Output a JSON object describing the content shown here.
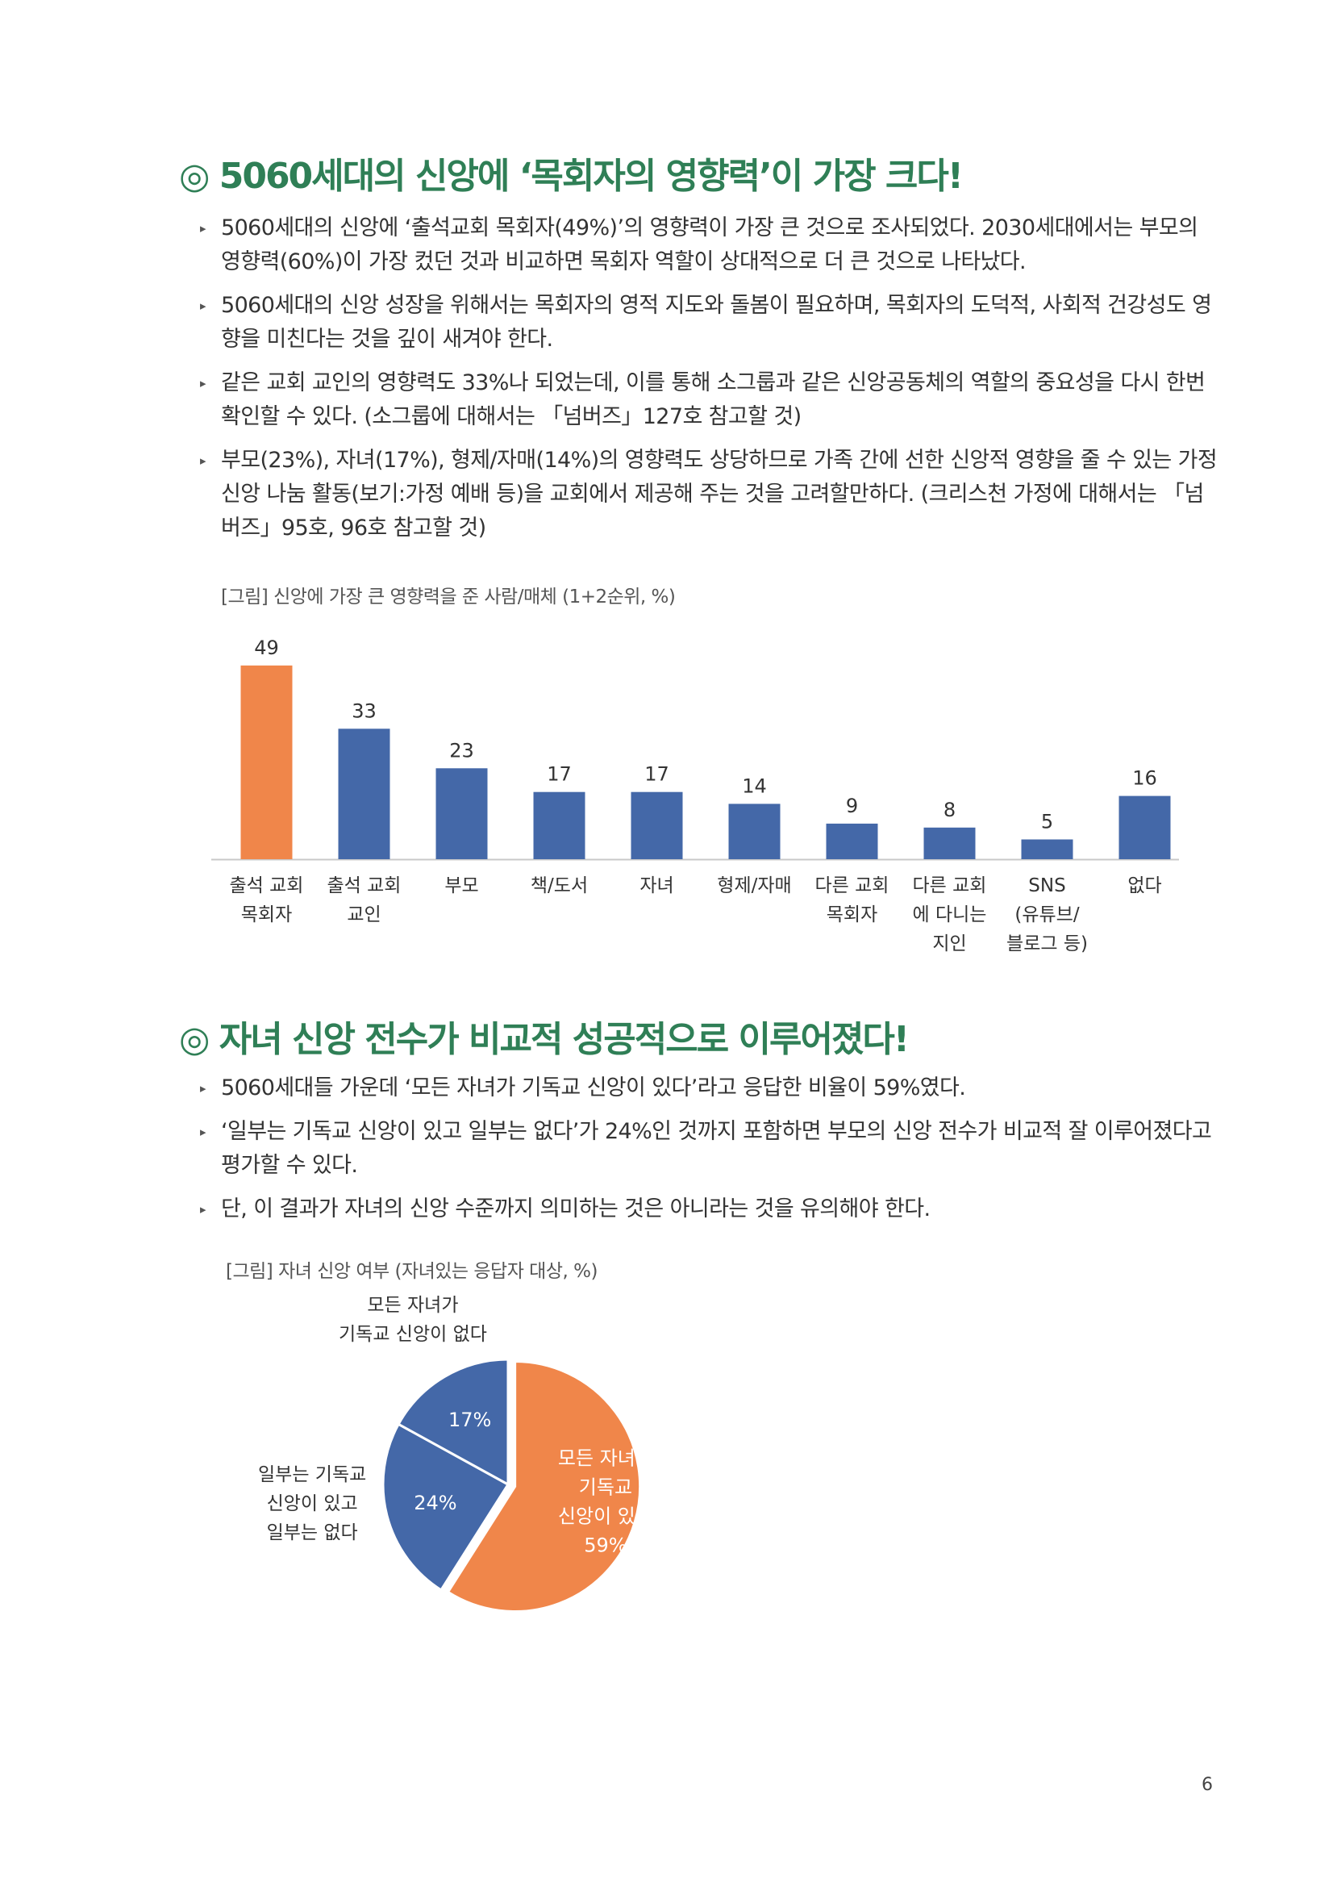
{
  "section1": {
    "heading": "◎ 5060세대의 신앙에 ‘목회자의 영향력’이 가장 크다!",
    "bullets": [
      "5060세대의 신앙에 ‘출석교회 목회자(49%)’의 영향력이 가장 큰 것으로 조사되었다. 2030세대에서는 부모의 영향력(60%)이 가장 컸던 것과 비교하면 목회자 역할이 상대적으로 더 큰 것으로 나타났다.",
      "5060세대의 신앙 성장을 위해서는 목회자의 영적 지도와 돌봄이 필요하며, 목회자의 도덕적, 사회적 건강성도 영향을 미친다는 것을 깊이 새겨야 한다.",
      "같은 교회 교인의 영향력도 33%나 되었는데, 이를 통해 소그룹과 같은 신앙공동체의 역할의 중요성을 다시 한번 확인할 수 있다. (소그룹에 대해서는 「넘버즈」127호 참고할 것)",
      "부모(23%), 자녀(17%), 형제/자매(14%)의 영향력도 상당하므로 가족 간에 선한 신앙적 영향을 줄 수 있는 가정 신앙 나눔 활동(보기:가정 예배 등)을 교회에서 제공해 주는 것을 고려할만하다. (크리스천 가정에 대해서는 「넘버즈」95호, 96호 참고할 것)"
    ],
    "figure_caption": "[그림] 신앙에 가장 큰 영향력을 준 사람/매체 (1+2순위, %)"
  },
  "section2": {
    "heading": "◎ 자녀 신앙 전수가 비교적 성공적으로 이루어졌다!",
    "bullets": [
      "5060세대들 가운데 ‘모든 자녀가 기독교 신앙이 있다’라고 응답한 비율이 59%였다.",
      "‘일부는 기독교 신앙이 있고 일부는 없다’가 24%인 것까지 포함하면 부모의 신앙 전수가 비교적 잘 이루어졌다고 평가할 수 있다.",
      "단, 이 결과가 자녀의 신앙 수준까지 의미하는 것은 아니라는 것을 유의해야 한다."
    ],
    "figure_caption": "[그림] 자녀 신앙 여부 (자녀있는 응답자 대상, %)"
  },
  "chart_data": [
    {
      "type": "bar",
      "categories": [
        [
          "출석 교회",
          "목회자"
        ],
        [
          "출석 교회",
          "교인"
        ],
        [
          "부모"
        ],
        [
          "책/도서"
        ],
        [
          "자녀"
        ],
        [
          "형제/자매"
        ],
        [
          "다른 교회",
          "목회자"
        ],
        [
          "다른 교회",
          "에 다니는",
          "지인"
        ],
        [
          "SNS",
          "(유튜브/",
          "블로그 등)"
        ],
        [
          "없다"
        ]
      ],
      "values": [
        49,
        33,
        23,
        17,
        17,
        14,
        9,
        8,
        5,
        16
      ],
      "colors": [
        "#f0864a",
        "#4468a8",
        "#4468a8",
        "#4468a8",
        "#4468a8",
        "#4468a8",
        "#4468a8",
        "#4468a8",
        "#4468a8",
        "#4468a8"
      ],
      "ylim": [
        0,
        50
      ],
      "grid": false
    },
    {
      "type": "pie",
      "slices": [
        {
          "lines": [
            "모든 자녀가",
            "기독교",
            "신앙이 있다"
          ],
          "value_label": "59%",
          "value": 59,
          "color": "#f0864a",
          "label_placement": "inside"
        },
        {
          "lines": [
            "일부는 기독교",
            "신앙이 있고",
            "일부는 없다"
          ],
          "value_label": "24%",
          "value": 24,
          "color": "#4468a8",
          "label_placement": "outside-left"
        },
        {
          "lines": [
            "모든 자녀가",
            "기독교 신앙이 없다"
          ],
          "value_label": "17%",
          "value": 17,
          "color": "#4468a8",
          "label_placement": "outside-top"
        }
      ]
    }
  ],
  "page_number": "6"
}
